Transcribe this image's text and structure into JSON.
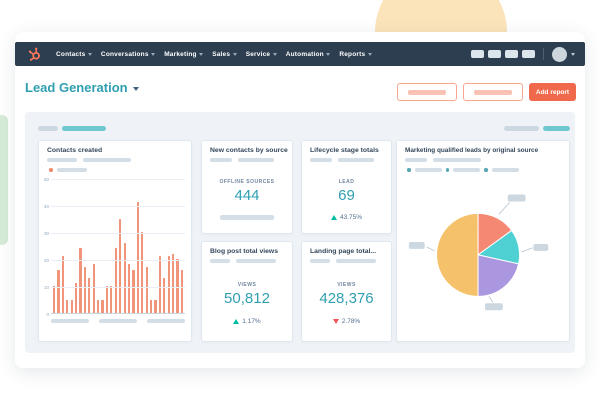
{
  "navbar": {
    "logo_icon": "hubspot-sprocket-icon",
    "items": [
      "Contacts",
      "Conversations",
      "Marketing",
      "Sales",
      "Service",
      "Automation",
      "Reports"
    ],
    "icon_placeholder_count": 4
  },
  "header": {
    "title": "Lead Generation",
    "add_report_label": "Add report",
    "outline_button_count": 2
  },
  "dashboard": {
    "cards": {
      "contacts": {
        "title": "Contacts created"
      },
      "new_contacts": {
        "title": "New contacts by source",
        "label": "OFFLINE SOURCES",
        "value": "444"
      },
      "lifecycle": {
        "title": "Lifecycle stage totals",
        "label": "LEAD",
        "value": "69",
        "delta": "43.75%",
        "direction": "up"
      },
      "blog": {
        "title": "Blog post total views",
        "label": "VIEWS",
        "value": "50,812",
        "delta": "1.17%",
        "direction": "up"
      },
      "landing": {
        "title": "Landing page total...",
        "label": "VIEWS",
        "value": "428,376",
        "delta": "2.78%",
        "direction": "down"
      },
      "mql": {
        "title": "Marketing qualified leads by original source",
        "legend_placeholder_count": 3,
        "callout_placeholder_count": 4
      }
    }
  },
  "chart_data": [
    {
      "type": "bar",
      "title": "Contacts created",
      "values": [
        10,
        16,
        21,
        5,
        5,
        11,
        24,
        17,
        13,
        18,
        5,
        5,
        10,
        10,
        24,
        35,
        26,
        18,
        16,
        41,
        30,
        17,
        5,
        5,
        21,
        13,
        21,
        22,
        20,
        16
      ],
      "ylim": [
        0,
        50
      ],
      "yticks": [
        0,
        10,
        20,
        30,
        40,
        50
      ],
      "x_axis_placeholder_labels": 3,
      "grid": true,
      "bar_color": "#f0947a",
      "legend": "one placeholder series entry"
    },
    {
      "type": "pie",
      "title": "Marketing qualified leads by original source",
      "slices": [
        {
          "label": "segment-1",
          "percent": 15,
          "color": "#f58873"
        },
        {
          "label": "segment-2",
          "percent": 13.5,
          "color": "#4fd1d4"
        },
        {
          "label": "segment-3",
          "percent": 21.5,
          "color": "#ab96e0"
        },
        {
          "label": "segment-4",
          "percent": 50,
          "color": "#f5c26b"
        }
      ],
      "legend_position": "top",
      "labels": "4 placeholder callout boxes"
    }
  ],
  "colors": {
    "navbar_bg": "#2d3e50",
    "brand_orange": "#ff7a59",
    "button_orange": "#f0694c",
    "accent_teal": "#2f9fb0",
    "placeholder_teal": "#6fc8ce",
    "placeholder_gray": "#d4dee7",
    "positive": "#00bda5",
    "negative": "#f2545b",
    "panel_bg": "#eff3f7",
    "pie_colors": [
      "#f58873",
      "#4fd1d4",
      "#ab96e0",
      "#f5c26b"
    ],
    "bg_dome": "#fbe4ba",
    "bg_mint": "#d6ecd9"
  }
}
